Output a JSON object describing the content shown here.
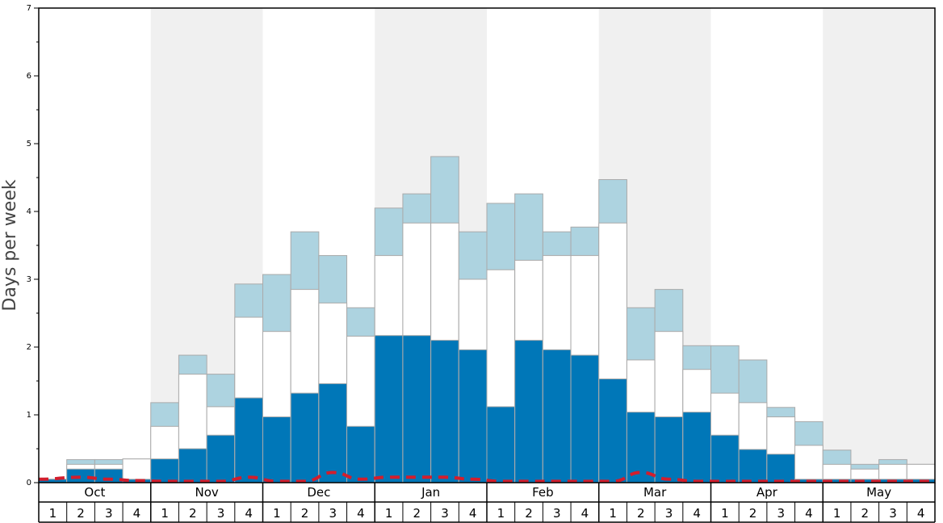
{
  "chart_data": {
    "type": "bar",
    "ylabel": "Days per week",
    "ylim": [
      0,
      7
    ],
    "yticks": [
      "0",
      "1",
      "2",
      "3",
      "4",
      "5",
      "6",
      "7"
    ],
    "months": [
      "Oct",
      "Nov",
      "Dec",
      "Jan",
      "Feb",
      "Mar",
      "Apr",
      "May"
    ],
    "weeks": [
      "1",
      "2",
      "3",
      "4"
    ],
    "categories": [
      "Oct 1",
      "Oct 2",
      "Oct 3",
      "Oct 4",
      "Nov 1",
      "Nov 2",
      "Nov 3",
      "Nov 4",
      "Dec 1",
      "Dec 2",
      "Dec 3",
      "Dec 4",
      "Jan 1",
      "Jan 2",
      "Jan 3",
      "Jan 4",
      "Feb 1",
      "Feb 2",
      "Feb 3",
      "Feb 4",
      "Mar 1",
      "Mar 2",
      "Mar 3",
      "Mar 4",
      "Apr 1",
      "Apr 2",
      "Apr 3",
      "Apr 4",
      "May 1",
      "May 2",
      "May 3",
      "May 4"
    ],
    "series": [
      {
        "color": "#0077b8",
        "values": [
          0.05,
          0.2,
          0.2,
          0.05,
          0.35,
          0.5,
          0.7,
          1.25,
          0.97,
          1.32,
          1.46,
          0.83,
          2.17,
          2.17,
          2.1,
          1.96,
          1.12,
          2.1,
          1.96,
          1.88,
          1.53,
          1.04,
          0.97,
          1.04,
          0.7,
          0.49,
          0.42,
          0.05,
          0.05,
          0.05,
          0.05,
          0.05
        ]
      },
      {
        "color": "#ffffff",
        "values": [
          0.05,
          0.27,
          0.27,
          0.35,
          0.83,
          1.6,
          1.12,
          2.44,
          2.23,
          2.85,
          2.65,
          2.16,
          3.35,
          3.83,
          3.83,
          3.0,
          3.14,
          3.28,
          3.35,
          3.35,
          3.83,
          1.81,
          2.23,
          1.67,
          1.32,
          1.18,
          0.97,
          0.55,
          0.27,
          0.2,
          0.27,
          0.27
        ]
      },
      {
        "color": "#add3e0",
        "values": [
          0.05,
          0.34,
          0.34,
          0.35,
          1.18,
          1.88,
          1.6,
          2.93,
          3.07,
          3.7,
          3.35,
          2.58,
          4.05,
          4.26,
          4.81,
          3.7,
          4.12,
          4.26,
          3.7,
          3.77,
          4.47,
          2.58,
          2.85,
          2.02,
          2.02,
          1.81,
          1.11,
          0.9,
          0.48,
          0.27,
          0.34,
          0.27
        ]
      }
    ],
    "dashed_line": {
      "color": "#d21e2d",
      "values": [
        0.05,
        0.08,
        0.05,
        0.03,
        0.02,
        0.02,
        0.02,
        0.08,
        0.02,
        0.02,
        0.15,
        0.05,
        0.08,
        0.08,
        0.08,
        0.05,
        0.02,
        0.02,
        0.02,
        0.02,
        0.02,
        0.15,
        0.05,
        0.02,
        0.02,
        0.02,
        0.02,
        0.02,
        0.02,
        0.02,
        0.02,
        0.02
      ]
    },
    "shaded_months": [
      "Nov",
      "Jan",
      "Mar",
      "May"
    ],
    "grid": false
  }
}
